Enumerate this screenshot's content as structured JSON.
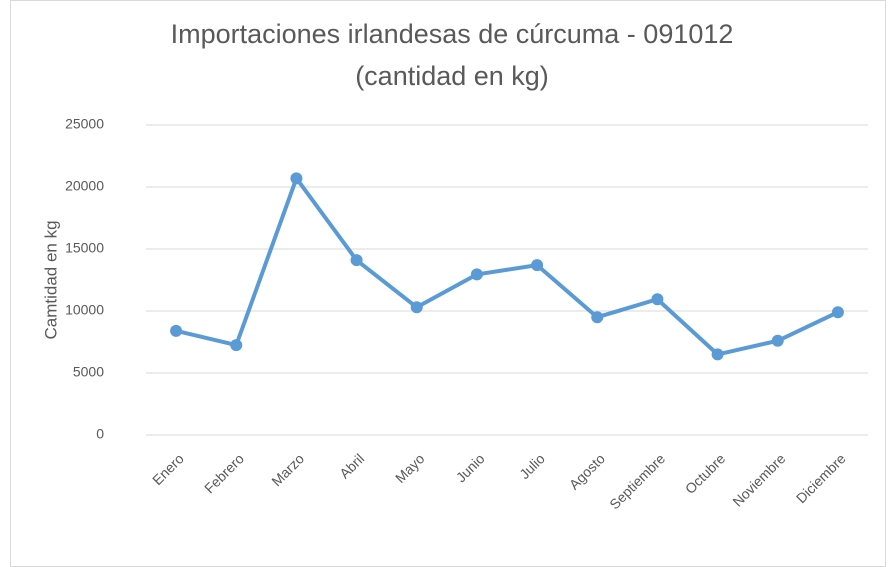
{
  "chart_data": {
    "type": "line",
    "title": [
      "Importaciones irlandesas de cúrcuma - 091012",
      "(cantidad en kg)"
    ],
    "y_label": "Camtidad en kg",
    "categories": [
      "Enero",
      "Febrero",
      "Marzo",
      "Abril",
      "Mayo",
      "Junio",
      "Julio",
      "Agosto",
      "Septiembre",
      "Octubre",
      "Noviembre",
      "Diciembre"
    ],
    "series": [
      {
        "name": "Cantidad",
        "color": "#5b9bd5",
        "values": [
          8400,
          7250,
          20700,
          14100,
          10300,
          12950,
          13700,
          9500,
          10950,
          6500,
          7600,
          9900
        ]
      }
    ],
    "ylim": [
      0,
      25000
    ],
    "yticks": [
      0,
      5000,
      10000,
      15000,
      20000,
      25000
    ],
    "grid": true,
    "legend": false
  }
}
